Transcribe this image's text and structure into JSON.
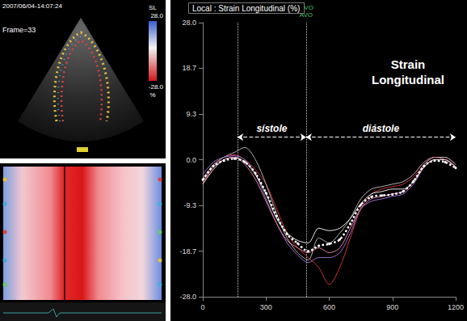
{
  "chart_data": {
    "type": "line",
    "title": "Local : Strain Longitudinal (%)",
    "x": [
      0,
      50,
      100,
      150,
      200,
      250,
      300,
      350,
      400,
      450,
      500,
      550,
      600,
      650,
      700,
      750,
      800,
      850,
      900,
      950,
      1000,
      1050,
      1100,
      1150,
      1200
    ],
    "series": [
      {
        "color": "#d03030",
        "line_style": "solid",
        "values": [
          -5,
          -1.5,
          0.5,
          1,
          0,
          -2,
          -5,
          -10,
          -15,
          -18,
          -20,
          -22,
          -25.5,
          -22,
          -16,
          -10,
          -7,
          -6,
          -5.5,
          -5,
          -3.5,
          -1,
          0.5,
          0.5,
          -1
        ]
      },
      {
        "color": "#b0b0b0",
        "line_style": "solid",
        "values": [
          -4,
          -1,
          0.5,
          1.5,
          2.5,
          0,
          -5,
          -11,
          -16,
          -19,
          -20.5,
          -16,
          -17,
          -15,
          -12,
          -8,
          -6,
          -5.5,
          -5,
          -4.5,
          -3,
          -0.5,
          0.5,
          0.5,
          -1
        ]
      },
      {
        "color": "#9a6fd0",
        "line_style": "solid",
        "values": [
          -3,
          -0.5,
          0.5,
          0.8,
          0,
          -3,
          -8,
          -13,
          -17,
          -19.5,
          -21,
          -20,
          -20,
          -19,
          -15,
          -10,
          -8.5,
          -8,
          -7.5,
          -7,
          -5,
          -1.5,
          0,
          0,
          -1.5
        ]
      },
      {
        "color": "#e8e8e8",
        "line_style": "solid",
        "values": [
          -5,
          -2,
          0,
          0.5,
          -0.5,
          -3,
          -7,
          -12,
          -15,
          -16.5,
          -17,
          -14,
          -14.5,
          -14,
          -12,
          -9,
          -7,
          -6.5,
          -6,
          -6,
          -4.5,
          -1.5,
          0,
          0,
          -1.5
        ]
      },
      {
        "color": "#e080a0",
        "line_style": "solid",
        "values": [
          -4.5,
          -1.5,
          0,
          0.5,
          -1,
          -4,
          -8.5,
          -13,
          -16.5,
          -18,
          -19,
          -18,
          -19,
          -18,
          -14,
          -10,
          -8,
          -7.5,
          -7,
          -6.5,
          -4.5,
          -1,
          0.5,
          0,
          -1.5
        ]
      },
      {
        "color": "#ffffff",
        "line_style": "dotted",
        "marker": "circle",
        "values": [
          -4.1,
          -1.3,
          -0.2,
          0.2,
          -0.5,
          -2.8,
          -6.8,
          -11.5,
          -15.2,
          -17.1,
          -18.7,
          -17.6,
          -17.2,
          -16.3,
          -13.1,
          -9.2,
          -7.6,
          -7.3,
          -7.1,
          -6.5,
          -4.4,
          -1.3,
          -0.2,
          -0.5,
          -1.7
        ]
      }
    ],
    "xlim": [
      0,
      1200
    ],
    "xticks": [
      0,
      300,
      600,
      900,
      1200
    ],
    "ylim": [
      -28,
      28
    ],
    "yticks": [
      {
        "value": -28,
        "label": "-28.0"
      },
      {
        "value": -18.67,
        "label": "-18.7"
      },
      {
        "value": -9.33,
        "label": "-9.3"
      },
      {
        "value": 0,
        "label": "0.0"
      },
      {
        "value": 9.33,
        "label": "9.3"
      },
      {
        "value": 18.67,
        "label": "18.7"
      },
      {
        "value": 28,
        "label": "28.0"
      }
    ],
    "grid": false,
    "annotations": [
      {
        "text": "sístole",
        "x": [
          165,
          490
        ],
        "y": 4.6
      },
      {
        "text": "diástole",
        "x": [
          490,
          1200
        ],
        "y": 4.6
      },
      {
        "x": 165
      },
      {
        "x": 490,
        "texts": [
          "MVO",
          "AVO"
        ]
      },
      {
        "text": "Strain Longitudinal"
      }
    ]
  },
  "image_panel": {
    "timestamp": "2007/06/04-14:07:24",
    "frame": "Frame=33",
    "colorbar": {
      "label": "SL",
      "unit": "%",
      "range": [
        {
          "value": -28,
          "label": "-28.0"
        },
        {
          "value": 28,
          "label": "28.0"
        }
      ]
    }
  }
}
